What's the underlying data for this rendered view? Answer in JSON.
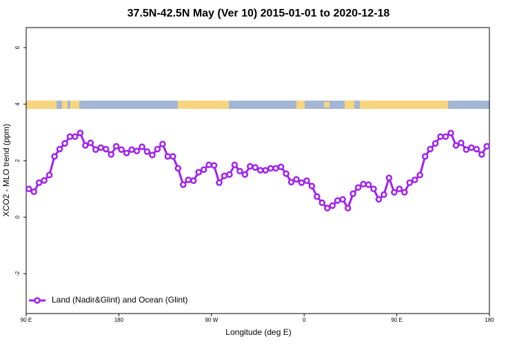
{
  "chart_data": {
    "type": "line",
    "title": "37.5N-42.5N May (Ver 10)   2015-01-01 to 2020-12-18",
    "x_label": "Longitude (deg E)",
    "y_label": "XCO2 - MLO trend (ppm)",
    "x": [
      92.5,
      97.5,
      102.5,
      107.5,
      112.5,
      117.5,
      122.5,
      127.5,
      132.5,
      137.5,
      142.5,
      147.5,
      152.5,
      157.5,
      162.5,
      167.5,
      172.5,
      177.5,
      182.5,
      187.5,
      192.5,
      197.5,
      202.5,
      207.5,
      212.5,
      217.5,
      222.5,
      227.5,
      232.5,
      237.5,
      242.5,
      247.5,
      252.5,
      257.5,
      262.5,
      267.5,
      272.5,
      277.5,
      282.5,
      287.5,
      292.5,
      297.5,
      302.5,
      307.5,
      312.5,
      317.5,
      322.5,
      327.5,
      332.5,
      337.5,
      342.5,
      347.5,
      352.5,
      357.5,
      362.5,
      367.5,
      372.5,
      377.5,
      382.5,
      387.5,
      392.5,
      397.5,
      402.5,
      407.5,
      412.5,
      417.5,
      422.5,
      427.5,
      432.5,
      437.5,
      442.5,
      447.5,
      452.5,
      457.5,
      462.5,
      467.5,
      472.5,
      477.5,
      482.5,
      487.5,
      492.5,
      497.5,
      502.5,
      507.5,
      512.5,
      517.5,
      522.5,
      527.5,
      532.5,
      537.5
    ],
    "series": [
      {
        "name": "Land (Nadir&Glint) and Ocean (Glint)",
        "color": "#a020f0",
        "values": [
          1.0,
          0.9,
          1.22,
          1.3,
          1.49,
          2.15,
          2.41,
          2.61,
          2.85,
          2.85,
          2.98,
          2.54,
          2.63,
          2.39,
          2.46,
          2.41,
          2.22,
          2.51,
          2.39,
          2.27,
          2.39,
          2.34,
          2.49,
          2.32,
          2.2,
          2.41,
          2.59,
          2.15,
          2.15,
          1.73,
          1.15,
          1.32,
          1.29,
          1.59,
          1.68,
          1.85,
          1.83,
          1.22,
          1.46,
          1.51,
          1.85,
          1.63,
          1.51,
          1.8,
          1.76,
          1.66,
          1.66,
          1.73,
          1.73,
          1.78,
          1.54,
          1.24,
          1.34,
          1.22,
          1.29,
          1.1,
          0.73,
          0.51,
          0.32,
          0.41,
          0.59,
          0.63,
          0.32,
          0.83,
          1.05,
          1.17,
          1.15,
          1.0,
          0.63,
          0.8,
          1.39,
          0.88,
          1.0,
          0.88,
          1.22,
          1.32,
          1.49,
          2.15,
          2.41,
          2.61,
          2.85,
          2.85,
          2.98,
          2.54,
          2.63,
          2.39,
          2.46,
          2.41,
          2.22,
          2.51
        ]
      }
    ],
    "xlim": [
      90,
      540
    ],
    "xticks": [
      {
        "value": 90,
        "label": "90 E"
      },
      180,
      {
        "value": 270,
        "label": "90 W"
      },
      {
        "value": 360,
        "label": "0"
      },
      {
        "value": 450,
        "label": "90 E"
      },
      {
        "value": 540,
        "label": "180"
      }
    ],
    "ylim": [
      -3.41,
      6.71
    ],
    "yticks": [
      -2,
      0,
      2,
      4,
      6
    ],
    "legend": "bottom-left"
  }
}
